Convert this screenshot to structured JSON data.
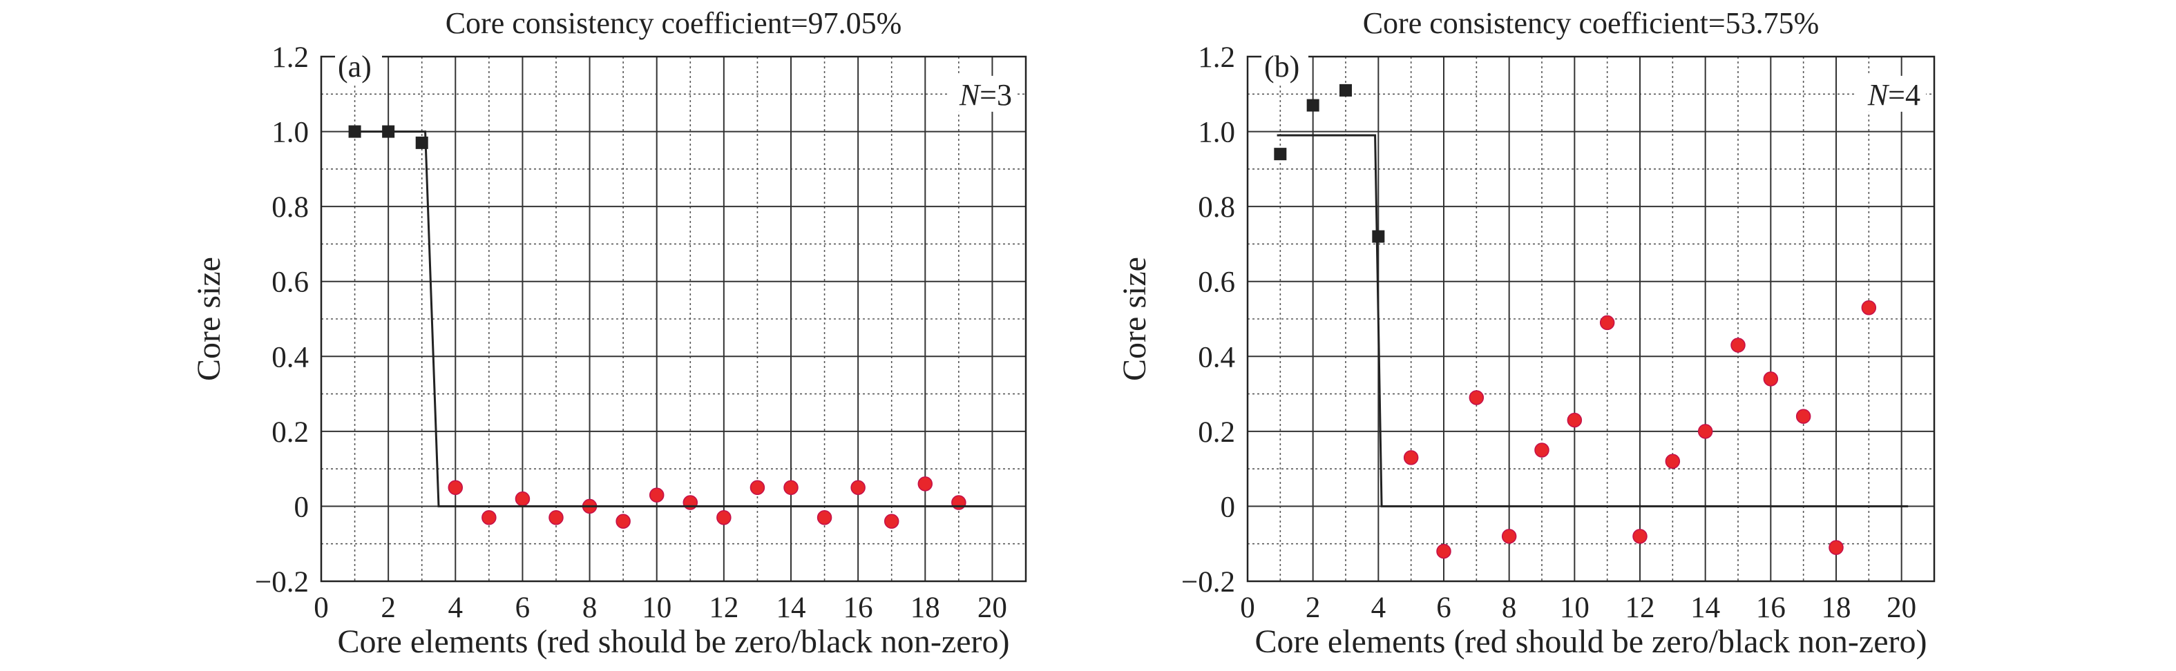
{
  "chart_data": [
    {
      "type": "scatter",
      "title": "Core consistency coefficient=97.05%",
      "xlabel": "Core elements (red should be zero/black non-zero)",
      "ylabel": "Core size",
      "panel_label": "(a)",
      "n_var": "N",
      "n_value": "=3",
      "xlim": [
        0,
        21
      ],
      "ylim": [
        -0.2,
        1.2
      ],
      "x_ticks": [
        "0",
        "2",
        "4",
        "6",
        "8",
        "10",
        "12",
        "14",
        "16",
        "18",
        "20"
      ],
      "y_ticks": [
        "1.2",
        "1.0",
        "0.8",
        "0.6",
        "0.4",
        "0.2",
        "0",
        "−0.2"
      ],
      "grid": true,
      "series": [
        {
          "color": "#222222",
          "marker": "square",
          "x": [
            1,
            2,
            3
          ],
          "y": [
            1.0,
            1.0,
            0.97
          ]
        },
        {
          "color": "#e8262b",
          "marker": "circle",
          "x": [
            4,
            5,
            6,
            7,
            8,
            9,
            10,
            11,
            12,
            13,
            14,
            15,
            16,
            17,
            18,
            19
          ],
          "y": [
            0.05,
            -0.03,
            0.02,
            -0.03,
            0.0,
            -0.04,
            0.03,
            0.01,
            -0.03,
            0.05,
            0.05,
            -0.03,
            0.05,
            -0.04,
            0.06,
            0.01
          ]
        },
        {
          "color": "#222222",
          "type": "line",
          "x": [
            0.9,
            3.1,
            3.5,
            20
          ],
          "y": [
            1.0,
            1.0,
            0.0,
            0.0
          ]
        }
      ]
    },
    {
      "type": "scatter",
      "title": "Core consistency coefficient=53.75%",
      "xlabel": "Core elements (red should be zero/black non-zero)",
      "ylabel": "Core size",
      "panel_label": "(b)",
      "n_var": "N",
      "n_value": "=4",
      "xlim": [
        0,
        21
      ],
      "ylim": [
        -0.2,
        1.2
      ],
      "x_ticks": [
        "0",
        "2",
        "4",
        "6",
        "8",
        "10",
        "12",
        "14",
        "16",
        "18",
        "20"
      ],
      "y_ticks": [
        "1.2",
        "1.0",
        "0.8",
        "0.6",
        "0.4",
        "0.2",
        "0",
        "−0.2"
      ],
      "grid": true,
      "series": [
        {
          "color": "#222222",
          "marker": "square",
          "x": [
            1,
            2,
            3,
            4
          ],
          "y": [
            0.94,
            1.07,
            1.11,
            0.72
          ]
        },
        {
          "color": "#e8262b",
          "marker": "circle",
          "x": [
            5,
            6,
            7,
            8,
            9,
            10,
            11,
            12,
            13,
            14,
            15,
            16,
            17,
            18,
            19
          ],
          "y": [
            0.13,
            -0.12,
            0.29,
            -0.08,
            0.15,
            0.23,
            0.49,
            -0.08,
            0.12,
            0.2,
            0.43,
            0.34,
            0.24,
            -0.11,
            0.53
          ]
        },
        {
          "color": "#222222",
          "type": "line",
          "x": [
            0.9,
            3.9,
            4.1,
            20.2
          ],
          "y": [
            0.99,
            0.99,
            0.0,
            0.0
          ]
        }
      ]
    }
  ]
}
